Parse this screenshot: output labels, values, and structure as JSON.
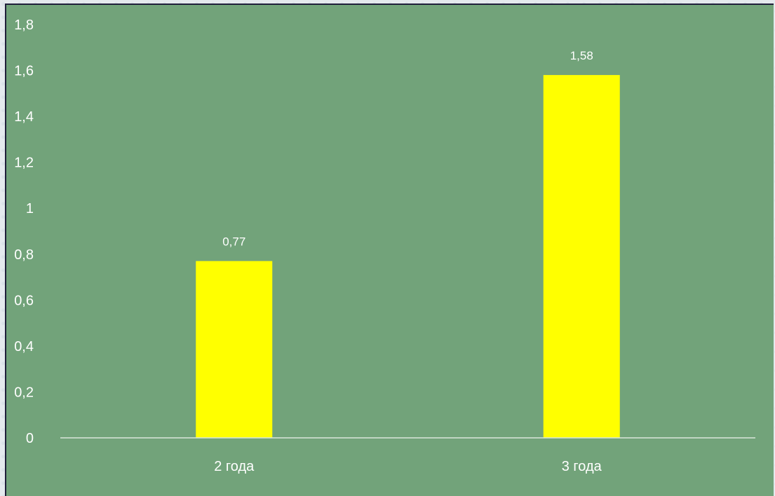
{
  "chart_data": {
    "type": "bar",
    "categories": [
      "2 года",
      "3 года"
    ],
    "values": [
      0.77,
      1.58
    ],
    "data_labels": [
      "0,77",
      "1,58"
    ],
    "y_tick_labels": [
      "0",
      "0,2",
      "0,4",
      "0,6",
      "0,8",
      "1",
      "1,2",
      "1,4",
      "1,6",
      "1,8"
    ],
    "y_ticks": [
      0,
      0.2,
      0.4,
      0.6,
      0.8,
      1.0,
      1.2,
      1.4,
      1.6,
      1.8
    ],
    "ylim": [
      0,
      1.8
    ],
    "grid": false,
    "legend": "none",
    "title": "",
    "xlabel": "",
    "ylabel": ""
  },
  "colors": {
    "background": "#72a37a",
    "bar": "#ffff00",
    "axis": "#d9e6db",
    "text": "#ffffff"
  }
}
